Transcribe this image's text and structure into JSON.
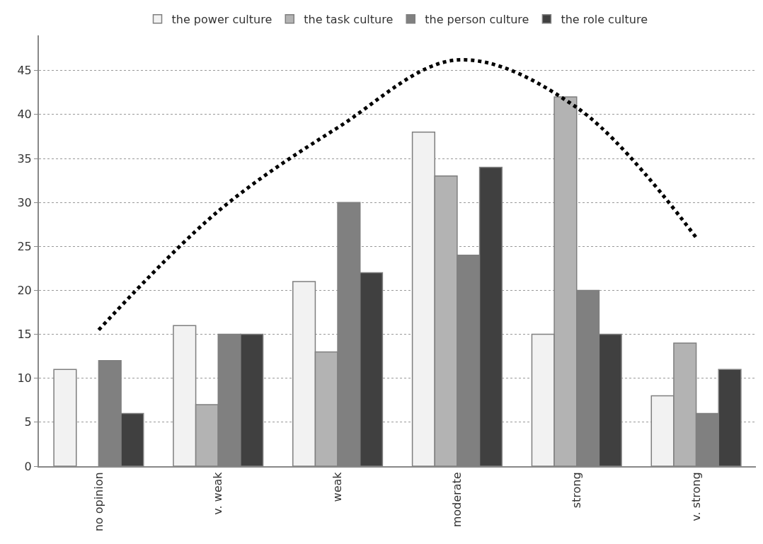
{
  "chart_data": {
    "type": "bar",
    "categories": [
      "no opinion",
      "v. weak",
      "weak",
      "moderate",
      "strong",
      "v. strong"
    ],
    "series": [
      {
        "name": "the power culture",
        "color": "#f2f2f2",
        "values": [
          11,
          16,
          21,
          38,
          15,
          8
        ]
      },
      {
        "name": "the task culture",
        "color": "#b3b3b3",
        "values": [
          null,
          7,
          13,
          33,
          42,
          14
        ]
      },
      {
        "name": "the person culture",
        "color": "#808080",
        "values": [
          12,
          15,
          30,
          24,
          20,
          6
        ]
      },
      {
        "name": "the role culture",
        "color": "#404040",
        "values": [
          6,
          15,
          22,
          34,
          15,
          11
        ]
      },
      {
        "type": "line",
        "color": "#000000",
        "line_style": "dotted",
        "values": [
          15.5,
          29,
          38.5,
          46.2,
          40.8,
          26
        ]
      }
    ],
    "ylim": [
      0,
      49
    ],
    "yticks": [
      0,
      5,
      10,
      15,
      20,
      25,
      30,
      35,
      40,
      45
    ],
    "grid": "y",
    "legend": "top"
  }
}
